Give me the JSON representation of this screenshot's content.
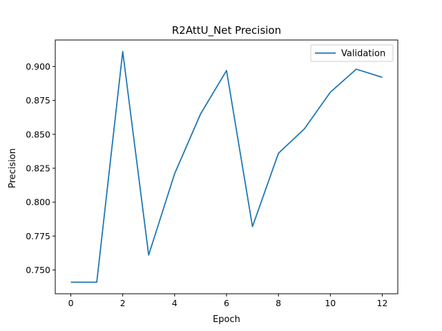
{
  "chart_data": {
    "type": "line",
    "title": "R2AttU_Net Precision",
    "xlabel": "Epoch",
    "ylabel": "Precision",
    "xlim": [
      -0.6,
      12.6
    ],
    "ylim": [
      0.7325,
      0.9195
    ],
    "xticks": [
      "0",
      "2",
      "4",
      "6",
      "8",
      "10",
      "12"
    ],
    "yticks": [
      "0.750",
      "0.775",
      "0.800",
      "0.825",
      "0.850",
      "0.875",
      "0.900"
    ],
    "grid": false,
    "legend_position": "top-right",
    "series": [
      {
        "name": "Validation",
        "color": "#1f77b4",
        "x": [
          0,
          1,
          2,
          3,
          4,
          5,
          6,
          7,
          8,
          9,
          10,
          11,
          12
        ],
        "values": [
          0.741,
          0.741,
          0.911,
          0.761,
          0.821,
          0.865,
          0.897,
          0.782,
          0.836,
          0.854,
          0.881,
          0.898,
          0.892
        ]
      }
    ]
  }
}
